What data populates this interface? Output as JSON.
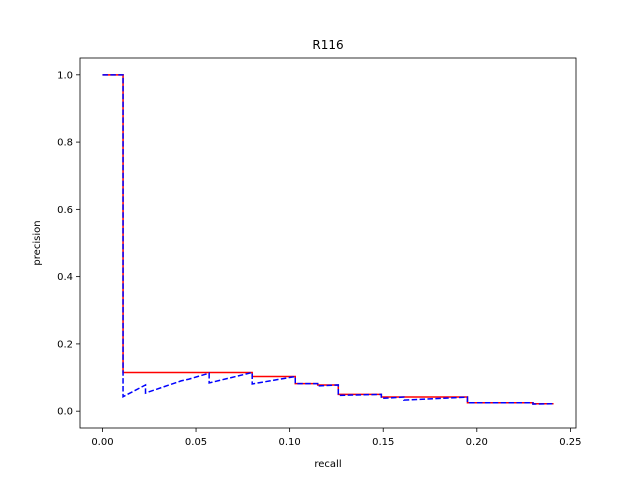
{
  "chart_data": {
    "type": "line",
    "title": "R116",
    "xlabel": "recall",
    "ylabel": "precision",
    "xlim": [
      -0.012,
      0.253
    ],
    "ylim": [
      -0.05,
      1.05
    ],
    "grid": false,
    "legend": "none",
    "x_ticks": [
      0.0,
      0.05,
      0.1,
      0.15,
      0.2,
      0.25
    ],
    "x_tick_labels": [
      "0.00",
      "0.05",
      "0.10",
      "0.15",
      "0.20",
      "0.25"
    ],
    "y_ticks": [
      0.0,
      0.2,
      0.4,
      0.6,
      0.8,
      1.0
    ],
    "y_tick_labels": [
      "0.0",
      "0.2",
      "0.4",
      "0.6",
      "0.8",
      "1.0"
    ],
    "series": [
      {
        "style": "solid",
        "color": "#ff0000",
        "x": [
          0.0,
          0.011,
          0.011,
          0.08,
          0.08,
          0.103,
          0.103,
          0.115,
          0.115,
          0.126,
          0.126,
          0.149,
          0.149,
          0.195,
          0.195,
          0.23,
          0.23,
          0.241
        ],
        "y": [
          1.0,
          1.0,
          0.115,
          0.115,
          0.103,
          0.103,
          0.082,
          0.082,
          0.078,
          0.078,
          0.05,
          0.05,
          0.042,
          0.042,
          0.025,
          0.025,
          0.022,
          0.022
        ]
      },
      {
        "style": "dashed",
        "color": "#0000ff",
        "x": [
          0.0,
          0.011,
          0.011,
          0.023,
          0.023,
          0.042,
          0.046,
          0.057,
          0.057,
          0.08,
          0.08,
          0.103,
          0.103,
          0.115,
          0.115,
          0.126,
          0.126,
          0.149,
          0.149,
          0.161,
          0.161,
          0.195,
          0.195,
          0.23,
          0.23,
          0.241
        ],
        "y": [
          1.0,
          1.0,
          0.043,
          0.078,
          0.054,
          0.09,
          0.095,
          0.113,
          0.084,
          0.115,
          0.081,
          0.103,
          0.082,
          0.082,
          0.075,
          0.078,
          0.047,
          0.05,
          0.038,
          0.042,
          0.033,
          0.042,
          0.025,
          0.025,
          0.021,
          0.022
        ]
      }
    ]
  }
}
